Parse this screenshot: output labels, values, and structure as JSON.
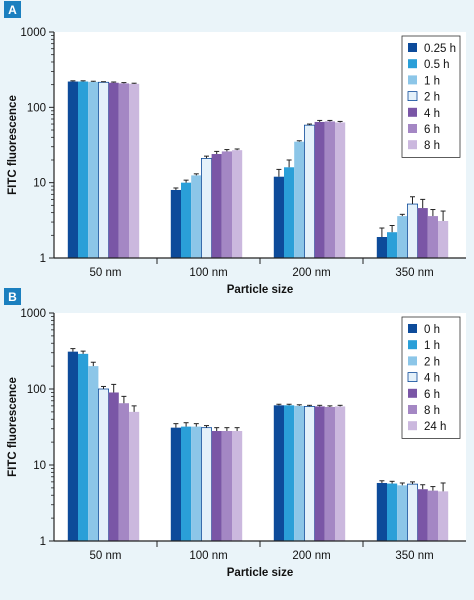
{
  "chart_data": [
    {
      "panel": "A",
      "type": "bar",
      "categories": [
        "50 nm",
        "100 nm",
        "200 nm",
        "350 nm"
      ],
      "xlabel": "Particle size",
      "ylabel": "FITC fluorescence",
      "yscale": "log",
      "ylim": [
        1,
        1000
      ],
      "yticks": [
        "1",
        "10",
        "100",
        "1000"
      ],
      "legend_position": "top-right",
      "series": [
        {
          "name": "0.25 h",
          "color": "#0d4b9a",
          "values": [
            220,
            8,
            12,
            1.9
          ],
          "errors": [
            5,
            0.5,
            3,
            0.6
          ]
        },
        {
          "name": "0.5 h",
          "color": "#2a9fd8",
          "values": [
            220,
            10,
            16,
            2.2
          ],
          "errors": [
            5,
            0.8,
            4,
            0.5
          ]
        },
        {
          "name": "1 h",
          "color": "#8cc6e8",
          "values": [
            218,
            12.5,
            35,
            3.6
          ],
          "errors": [
            4,
            0.6,
            1,
            0.2
          ]
        },
        {
          "name": "2 h",
          "color": "#e4f1fa",
          "values": [
            215,
            21,
            58,
            5.2
          ],
          "errors": [
            4,
            1.5,
            2,
            1.3
          ]
        },
        {
          "name": "4 h",
          "color": "#7a56a6",
          "values": [
            212,
            24,
            64,
            4.6
          ],
          "errors": [
            5,
            2,
            3,
            1.4
          ]
        },
        {
          "name": "6 h",
          "color": "#a487c4",
          "values": [
            208,
            26,
            65,
            3.6
          ],
          "errors": [
            5,
            1.5,
            2,
            0.8
          ]
        },
        {
          "name": "8 h",
          "color": "#cbb8de",
          "values": [
            205,
            27,
            63,
            3.1
          ],
          "errors": [
            4,
            1,
            2,
            1.1
          ]
        }
      ]
    },
    {
      "panel": "B",
      "type": "bar",
      "categories": [
        "50 nm",
        "100 nm",
        "200 nm",
        "350 nm"
      ],
      "xlabel": "Particle size",
      "ylabel": "FITC fluorescence",
      "yscale": "log",
      "ylim": [
        1,
        1000
      ],
      "yticks": [
        "1",
        "10",
        "100",
        "1000"
      ],
      "legend_position": "top-right",
      "series": [
        {
          "name": "0 h",
          "color": "#0d4b9a",
          "values": [
            310,
            31,
            61,
            5.8
          ],
          "errors": [
            30,
            4,
            2,
            0.4
          ]
        },
        {
          "name": "1 h",
          "color": "#2a9fd8",
          "values": [
            290,
            32,
            61,
            5.7
          ],
          "errors": [
            25,
            4,
            2,
            0.4
          ]
        },
        {
          "name": "2 h",
          "color": "#8cc6e8",
          "values": [
            200,
            32,
            60,
            5.4
          ],
          "errors": [
            25,
            3,
            2,
            0.4
          ]
        },
        {
          "name": "4 h",
          "color": "#e4f1fa",
          "values": [
            100,
            31,
            59,
            5.6
          ],
          "errors": [
            8,
            2,
            2,
            0.4
          ]
        },
        {
          "name": "6 h",
          "color": "#7a56a6",
          "values": [
            90,
            28,
            59,
            4.8
          ],
          "errors": [
            25,
            3,
            2,
            0.7
          ]
        },
        {
          "name": "8 h",
          "color": "#a487c4",
          "values": [
            65,
            28,
            58,
            4.6
          ],
          "errors": [
            15,
            3,
            2,
            0.6
          ]
        },
        {
          "name": "24 h",
          "color": "#cbb8de",
          "values": [
            50,
            28,
            59,
            4.5
          ],
          "errors": [
            10,
            3,
            2,
            1.3
          ]
        }
      ]
    }
  ]
}
